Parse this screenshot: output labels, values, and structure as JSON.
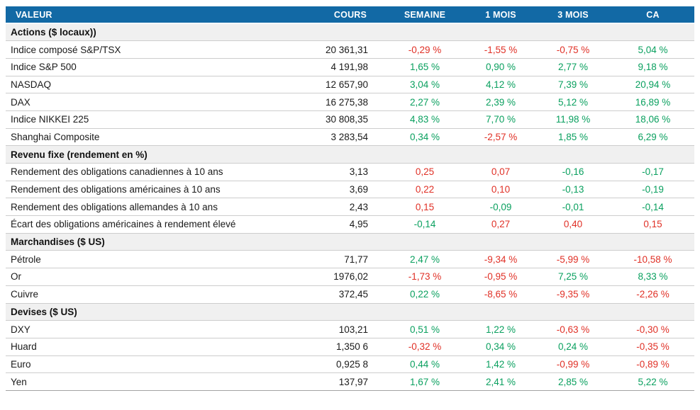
{
  "colors": {
    "header_bg": "#1269a5",
    "header_text": "#ffffff",
    "positive": "#0aa05f",
    "negative": "#e03026",
    "section_bg": "#f0f0f0",
    "row_border": "#cdcdcd"
  },
  "chart_data": {
    "type": "table",
    "columns": [
      "VALEUR",
      "COURS",
      "SEMAINE",
      "1 MOIS",
      "3 MOIS",
      "CA"
    ],
    "sections": [
      {
        "title": "Actions ($ locaux))",
        "rows": [
          {
            "label": "Indice composé S&P/TSX",
            "cours": "20 361,31",
            "changes": [
              {
                "v": "-0,29 %",
                "t": "neg"
              },
              {
                "v": "-1,55 %",
                "t": "neg"
              },
              {
                "v": "-0,75 %",
                "t": "neg"
              },
              {
                "v": "5,04 %",
                "t": "pos"
              }
            ]
          },
          {
            "label": "Indice S&P 500",
            "cours": "4 191,98",
            "changes": [
              {
                "v": "1,65 %",
                "t": "pos"
              },
              {
                "v": "0,90 %",
                "t": "pos"
              },
              {
                "v": "2,77 %",
                "t": "pos"
              },
              {
                "v": "9,18 %",
                "t": "pos"
              }
            ]
          },
          {
            "label": "NASDAQ",
            "cours": "12 657,90",
            "changes": [
              {
                "v": "3,04 %",
                "t": "pos"
              },
              {
                "v": "4,12 %",
                "t": "pos"
              },
              {
                "v": "7,39 %",
                "t": "pos"
              },
              {
                "v": "20,94 %",
                "t": "pos"
              }
            ]
          },
          {
            "label": "DAX",
            "cours": "16 275,38",
            "changes": [
              {
                "v": "2,27 %",
                "t": "pos"
              },
              {
                "v": "2,39 %",
                "t": "pos"
              },
              {
                "v": "5,12 %",
                "t": "pos"
              },
              {
                "v": "16,89 %",
                "t": "pos"
              }
            ]
          },
          {
            "label": "Indice NIKKEI 225",
            "cours": "30 808,35",
            "changes": [
              {
                "v": "4,83 %",
                "t": "pos"
              },
              {
                "v": "7,70 %",
                "t": "pos"
              },
              {
                "v": "11,98 %",
                "t": "pos"
              },
              {
                "v": "18,06 %",
                "t": "pos"
              }
            ]
          },
          {
            "label": "Shanghai Composite",
            "cours": "3 283,54",
            "changes": [
              {
                "v": "0,34 %",
                "t": "pos"
              },
              {
                "v": "-2,57 %",
                "t": "neg"
              },
              {
                "v": "1,85 %",
                "t": "pos"
              },
              {
                "v": "6,29 %",
                "t": "pos"
              }
            ]
          }
        ]
      },
      {
        "title": "Revenu fixe (rendement en %)",
        "rows": [
          {
            "label": "Rendement des obligations canadiennes à 10 ans",
            "cours": "3,13",
            "changes": [
              {
                "v": "0,25",
                "t": "neg"
              },
              {
                "v": "0,07",
                "t": "neg"
              },
              {
                "v": "-0,16",
                "t": "pos"
              },
              {
                "v": "-0,17",
                "t": "pos"
              }
            ]
          },
          {
            "label": "Rendement des obligations américaines à 10 ans",
            "cours": "3,69",
            "changes": [
              {
                "v": "0,22",
                "t": "neg"
              },
              {
                "v": "0,10",
                "t": "neg"
              },
              {
                "v": "-0,13",
                "t": "pos"
              },
              {
                "v": "-0,19",
                "t": "pos"
              }
            ]
          },
          {
            "label": "Rendement des obligations allemandes à 10 ans",
            "cours": "2,43",
            "changes": [
              {
                "v": "0,15",
                "t": "neg"
              },
              {
                "v": "-0,09",
                "t": "pos"
              },
              {
                "v": "-0,01",
                "t": "pos"
              },
              {
                "v": "-0,14",
                "t": "pos"
              }
            ]
          },
          {
            "label": "Écart des obligations américaines à rendement élevé",
            "cours": "4,95",
            "changes": [
              {
                "v": "-0,14",
                "t": "pos"
              },
              {
                "v": "0,27",
                "t": "neg"
              },
              {
                "v": "0,40",
                "t": "neg"
              },
              {
                "v": "0,15",
                "t": "neg"
              }
            ]
          }
        ]
      },
      {
        "title": "Marchandises ($ US)",
        "rows": [
          {
            "label": "Pétrole",
            "cours": "71,77",
            "changes": [
              {
                "v": "2,47 %",
                "t": "pos"
              },
              {
                "v": "-9,34 %",
                "t": "neg"
              },
              {
                "v": "-5,99 %",
                "t": "neg"
              },
              {
                "v": "-10,58 %",
                "t": "neg"
              }
            ]
          },
          {
            "label": "Or",
            "cours": "1976,02",
            "changes": [
              {
                "v": "-1,73 %",
                "t": "neg"
              },
              {
                "v": "-0,95 %",
                "t": "neg"
              },
              {
                "v": "7,25 %",
                "t": "pos"
              },
              {
                "v": "8,33 %",
                "t": "pos"
              }
            ]
          },
          {
            "label": "Cuivre",
            "cours": "372,45",
            "changes": [
              {
                "v": "0,22 %",
                "t": "pos"
              },
              {
                "v": "-8,65 %",
                "t": "neg"
              },
              {
                "v": "-9,35 %",
                "t": "neg"
              },
              {
                "v": "-2,26 %",
                "t": "neg"
              }
            ]
          }
        ]
      },
      {
        "title": "Devises ($ US)",
        "rows": [
          {
            "label": "DXY",
            "cours": "103,21",
            "changes": [
              {
                "v": "0,51 %",
                "t": "pos"
              },
              {
                "v": "1,22 %",
                "t": "pos"
              },
              {
                "v": "-0,63 %",
                "t": "neg"
              },
              {
                "v": "-0,30 %",
                "t": "neg"
              }
            ]
          },
          {
            "label": "Huard",
            "cours": "1,350 6",
            "changes": [
              {
                "v": "-0,32 %",
                "t": "neg"
              },
              {
                "v": "0,34 %",
                "t": "pos"
              },
              {
                "v": "0,24 %",
                "t": "pos"
              },
              {
                "v": "-0,35 %",
                "t": "neg"
              }
            ]
          },
          {
            "label": "Euro",
            "cours": "0,925 8",
            "changes": [
              {
                "v": "0,44 %",
                "t": "pos"
              },
              {
                "v": "1,42 %",
                "t": "pos"
              },
              {
                "v": "-0,99 %",
                "t": "neg"
              },
              {
                "v": "-0,89 %",
                "t": "neg"
              }
            ]
          },
          {
            "label": "Yen",
            "cours": "137,97",
            "changes": [
              {
                "v": "1,67 %",
                "t": "pos"
              },
              {
                "v": "2,41 %",
                "t": "pos"
              },
              {
                "v": "2,85 %",
                "t": "pos"
              },
              {
                "v": "5,22 %",
                "t": "pos"
              }
            ]
          }
        ]
      }
    ]
  }
}
